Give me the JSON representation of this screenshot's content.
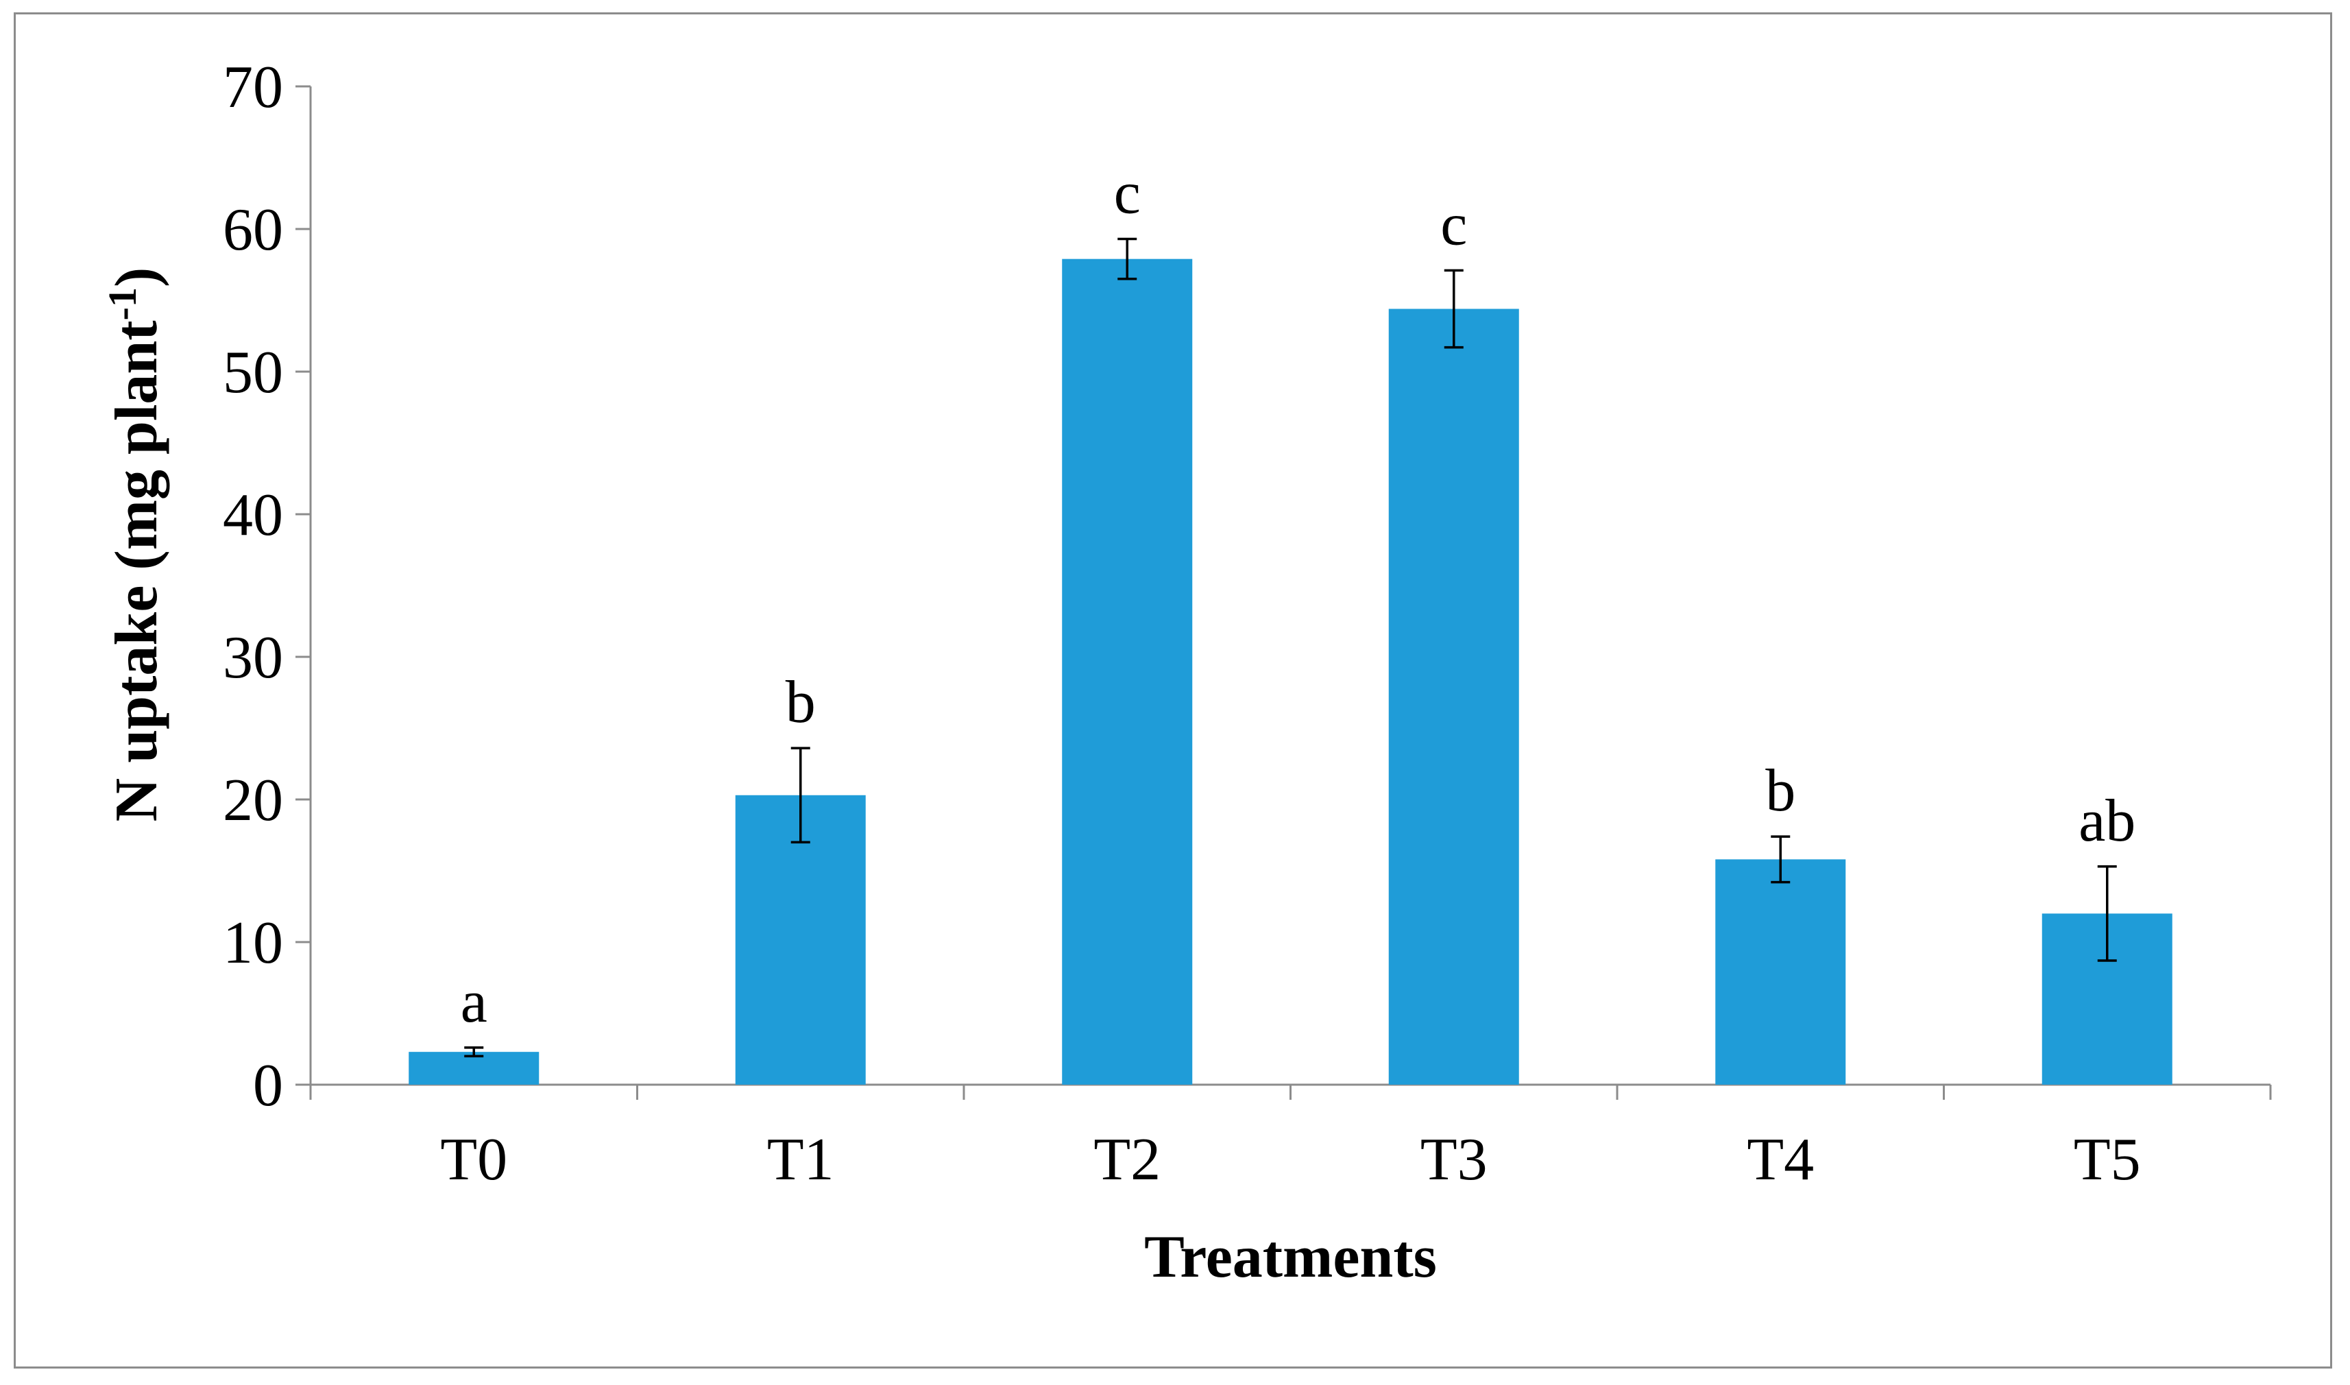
{
  "chart_data": {
    "type": "bar",
    "title": "",
    "xlabel": "Treatments",
    "ylabel": {
      "main": "N uptake (mg plant",
      "sup": "-1",
      "close": ")"
    },
    "ylim": [
      0,
      70
    ],
    "yticks": [
      0,
      10,
      20,
      30,
      40,
      50,
      60,
      70
    ],
    "categories": [
      "T0",
      "T1",
      "T2",
      "T3",
      "T4",
      "T5"
    ],
    "values": [
      2.3,
      20.3,
      57.9,
      54.4,
      15.8,
      12.0
    ],
    "errors": [
      0.3,
      3.3,
      1.4,
      2.7,
      1.6,
      3.3
    ],
    "significance": [
      "a",
      "b",
      "c",
      "c",
      "b",
      "ab"
    ],
    "bar_color": "#1f9cd8",
    "grid": false,
    "legend": "none"
  }
}
